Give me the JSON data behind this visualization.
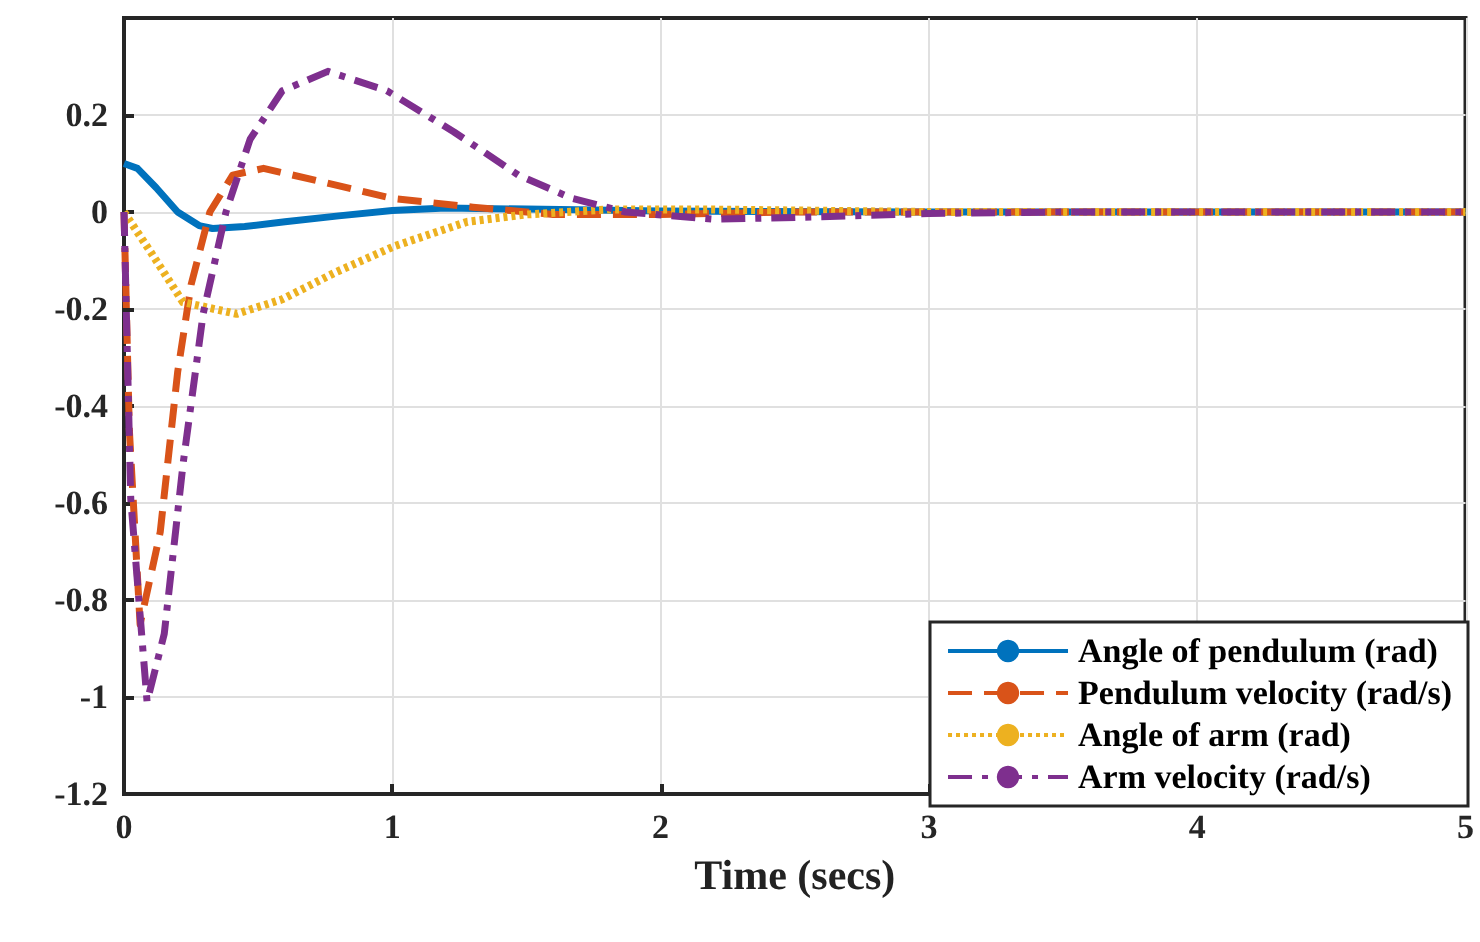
{
  "chart_data": {
    "type": "line",
    "xlabel": "Time (secs)",
    "xlim": [
      0,
      5
    ],
    "xticks": [
      0,
      1,
      2,
      3,
      4,
      5
    ],
    "ylim": [
      -1.2,
      0.4
    ],
    "yticks": [
      -1.2,
      -1,
      -0.8,
      -0.6,
      -0.4,
      -0.2,
      0,
      0.2
    ],
    "grid": true,
    "legend": "bottom right",
    "marker": "none",
    "series": [
      {
        "name": "Angle of pendulum (rad)",
        "color": "#0072bd",
        "line_style": "solid",
        "x": [
          0,
          0.05,
          0.12,
          0.2,
          0.28,
          0.33,
          0.45,
          0.6,
          0.8,
          1.0,
          1.2,
          1.5,
          2.0,
          3.0,
          4.0,
          5.0
        ],
        "values": [
          0.1,
          0.09,
          0.05,
          0.0,
          -0.028,
          -0.034,
          -0.03,
          -0.02,
          -0.008,
          0.003,
          0.008,
          0.006,
          0.002,
          0,
          0,
          0
        ]
      },
      {
        "name": "Pendulum velocity (rad/s)",
        "color": "#d95319",
        "line_style": "dashed",
        "x": [
          0,
          0.02,
          0.06,
          0.135,
          0.2,
          0.25,
          0.32,
          0.405,
          0.52,
          0.74,
          1.0,
          1.3,
          1.6,
          2.0,
          2.5,
          3.0,
          4.0,
          5.0
        ],
        "values": [
          0,
          -0.45,
          -0.85,
          -0.66,
          -0.33,
          -0.15,
          0,
          0.076,
          0.09,
          0.062,
          0.028,
          0.01,
          -0.005,
          -0.005,
          0,
          0,
          0,
          0
        ]
      },
      {
        "name": "Angle of arm (rad)",
        "color": "#edb120",
        "line_style": "dotted",
        "x": [
          0,
          0.1,
          0.22,
          0.42,
          0.59,
          0.79,
          1.01,
          1.28,
          1.5,
          1.8,
          2.2,
          3.0,
          4.0,
          5.0
        ],
        "values": [
          0,
          -0.083,
          -0.186,
          -0.21,
          -0.18,
          -0.124,
          -0.07,
          -0.02,
          -0.005,
          0.005,
          0.005,
          0,
          0,
          0
        ]
      },
      {
        "name": "Arm velocity (rad/s)",
        "color": "#7e2f8e",
        "line_style": "dashdot",
        "x": [
          0,
          0.025,
          0.086,
          0.15,
          0.22,
          0.295,
          0.38,
          0.47,
          0.59,
          0.76,
          0.98,
          1.23,
          1.47,
          1.67,
          1.87,
          2.2,
          2.6,
          3.0,
          3.5,
          4.0,
          5.0
        ],
        "values": [
          0,
          -0.59,
          -1.01,
          -0.87,
          -0.52,
          -0.21,
          0,
          0.15,
          0.25,
          0.29,
          0.25,
          0.165,
          0.076,
          0.028,
          0,
          -0.015,
          -0.01,
          -0.003,
          0,
          0,
          0
        ]
      }
    ]
  }
}
